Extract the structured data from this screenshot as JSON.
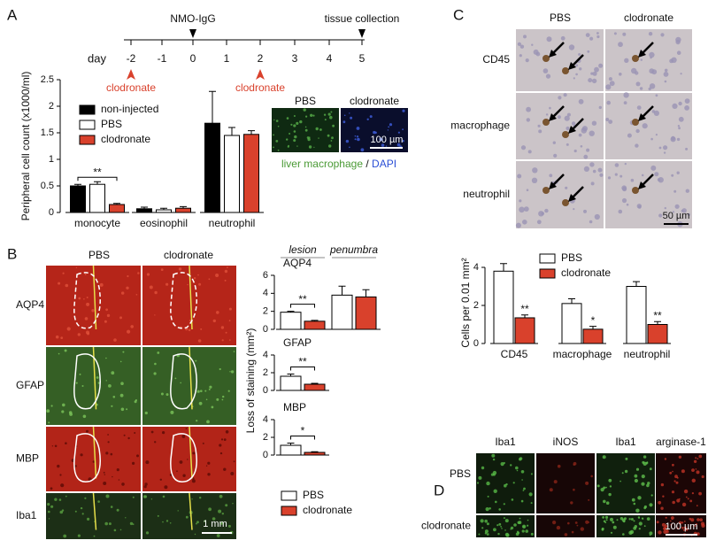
{
  "figure": {
    "panel_labels": [
      "A",
      "B",
      "C",
      "D"
    ],
    "timeline": {
      "axis_label": "day",
      "days": [
        "-2",
        "-1",
        "0",
        "1",
        "2",
        "3",
        "4",
        "5"
      ],
      "injection": "NMO-IgG",
      "end": "tissue collection",
      "treatment": [
        "clodronate",
        "clodronate"
      ]
    },
    "a_inset": {
      "columns": [
        "PBS",
        "clodronate"
      ],
      "scale_bar": "100 µm",
      "caption": [
        "liver macrophage",
        "/",
        "DAPI"
      ]
    },
    "b_images": {
      "columns": [
        "PBS",
        "clodronate"
      ],
      "rows": [
        "AQP4",
        "GFAP",
        "MBP",
        "Iba1"
      ],
      "scale_bar": "1 mm"
    },
    "c_images": {
      "columns": [
        "PBS",
        "clodronate"
      ],
      "rows": [
        "CD45",
        "macrophage",
        "neutrophil"
      ],
      "scale_bar": "50 µm"
    },
    "d_images": {
      "columns": [
        "Iba1",
        "iNOS",
        "Iba1",
        "arginase-1"
      ],
      "rows": [
        "PBS",
        "clodronate"
      ],
      "scale_bar": "100 µm"
    }
  },
  "chart_data": [
    {
      "type": "bar",
      "ylabel": "Peripheral cell count (x1000/ml)",
      "categories": [
        "monocyte",
        "eosinophil",
        "neutrophil"
      ],
      "series": [
        {
          "name": "non-injected",
          "color": "#000000",
          "values": [
            0.5,
            0.07,
            1.68
          ],
          "errors": [
            0.03,
            0.03,
            0.6
          ]
        },
        {
          "name": "PBS",
          "color": "#ffffff",
          "values": [
            0.53,
            0.05,
            1.45
          ],
          "errors": [
            0.05,
            0.03,
            0.15
          ]
        },
        {
          "name": "clodronate",
          "color": "#d9412c",
          "values": [
            0.15,
            0.08,
            1.47
          ],
          "errors": [
            0.02,
            0.03,
            0.07
          ]
        }
      ],
      "ylim": [
        0,
        2.5
      ],
      "yticks": [
        0,
        0.5,
        1,
        1.5,
        2,
        2.5
      ],
      "annotations": [
        {
          "text": "**"
        }
      ]
    },
    {
      "type": "bar",
      "ylabel": "Loss of staining (mm²)",
      "categories": [
        "lesion",
        "penumbra"
      ],
      "series": [
        {
          "name": "PBS",
          "color": "#ffffff"
        },
        {
          "name": "clodronate",
          "color": "#d9412c"
        }
      ],
      "subplots": [
        {
          "title": "AQP4",
          "ylim": [
            0,
            6
          ],
          "yticks": [
            0,
            2,
            4,
            6
          ],
          "values": [
            [
              1.9,
              3.8
            ],
            [
              0.9,
              3.6
            ]
          ],
          "errors": [
            [
              0.1,
              1.0
            ],
            [
              0.1,
              0.8
            ]
          ],
          "annotations": [
            {
              "text": "**"
            }
          ]
        },
        {
          "title": "GFAP",
          "ylim": [
            0,
            4
          ],
          "yticks": [
            0,
            2,
            4
          ],
          "values": [
            [
              1.6,
              null
            ],
            [
              0.7,
              null
            ]
          ],
          "errors": [
            [
              0.25,
              null
            ],
            [
              0.1,
              null
            ]
          ],
          "annotations": [
            {
              "text": "**"
            }
          ]
        },
        {
          "title": "MBP",
          "ylim": [
            0,
            4
          ],
          "yticks": [
            0,
            2,
            4
          ],
          "values": [
            [
              1.1,
              null
            ],
            [
              0.3,
              null
            ]
          ],
          "errors": [
            [
              0.25,
              null
            ],
            [
              0.07,
              null
            ]
          ],
          "annotations": [
            {
              "text": "*"
            }
          ]
        }
      ]
    },
    {
      "type": "bar",
      "ylabel": "Cells per 0.01 mm²",
      "categories": [
        "CD45",
        "macrophage",
        "neutrophil"
      ],
      "series": [
        {
          "name": "PBS",
          "color": "#ffffff",
          "values": [
            3.8,
            2.1,
            3.0
          ],
          "errors": [
            0.4,
            0.25,
            0.25
          ]
        },
        {
          "name": "clodronate",
          "color": "#d9412c",
          "values": [
            1.35,
            0.75,
            1.0
          ],
          "errors": [
            0.15,
            0.15,
            0.15
          ]
        }
      ],
      "ylim": [
        0,
        4
      ],
      "yticks": [
        0,
        2,
        4
      ],
      "annotations": [
        {
          "text": "**"
        },
        {
          "text": "*"
        },
        {
          "text": "**"
        }
      ]
    }
  ]
}
